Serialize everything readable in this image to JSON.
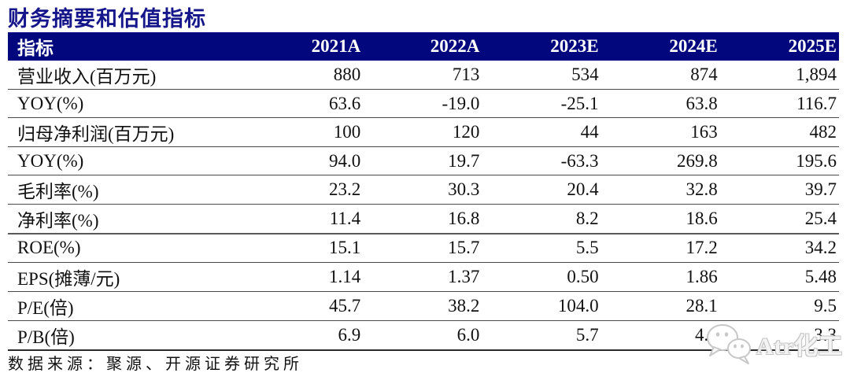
{
  "title": "财务摘要和估值指标",
  "table": {
    "header_label": "指标",
    "year_columns": [
      "2021A",
      "2022A",
      "2023E",
      "2024E",
      "2025E"
    ],
    "rows": [
      {
        "label": "营业收入(百万元)",
        "values": [
          "880",
          "713",
          "534",
          "874",
          "1,894"
        ]
      },
      {
        "label": "YOY(%)",
        "values": [
          "63.6",
          "-19.0",
          "-25.1",
          "63.8",
          "116.7"
        ]
      },
      {
        "label": "归母净利润(百万元)",
        "values": [
          "100",
          "120",
          "44",
          "163",
          "482"
        ]
      },
      {
        "label": "YOY(%)",
        "values": [
          "94.0",
          "19.7",
          "-63.3",
          "269.8",
          "195.6"
        ]
      },
      {
        "label": "毛利率(%)",
        "values": [
          "23.2",
          "30.3",
          "20.4",
          "32.8",
          "39.7"
        ]
      },
      {
        "label": "净利率(%)",
        "values": [
          "11.4",
          "16.8",
          "8.2",
          "18.6",
          "25.4"
        ],
        "section_end": true
      },
      {
        "label": "ROE(%)",
        "values": [
          "15.1",
          "15.7",
          "5.5",
          "17.2",
          "34.2"
        ]
      },
      {
        "label": "EPS(摊薄/元)",
        "values": [
          "1.14",
          "1.37",
          "0.50",
          "1.86",
          "5.48"
        ]
      },
      {
        "label": "P/E(倍)",
        "values": [
          "45.7",
          "38.2",
          "104.0",
          "28.1",
          "9.5"
        ]
      },
      {
        "label": "P/B(倍)",
        "values": [
          "6.9",
          "6.0",
          "5.7",
          "4.9",
          "3.3"
        ]
      }
    ]
  },
  "footer": {
    "source": "数据来源：聚源、开源证券研究所"
  },
  "watermark": {
    "icon": "wechat-icon",
    "text": "Atr化工"
  },
  "colors": {
    "header_bg": "#02077D",
    "title": "#16168B",
    "body_text": "#111111",
    "row_line": "#4a4a4a",
    "watermark": "#c4c4c4"
  }
}
